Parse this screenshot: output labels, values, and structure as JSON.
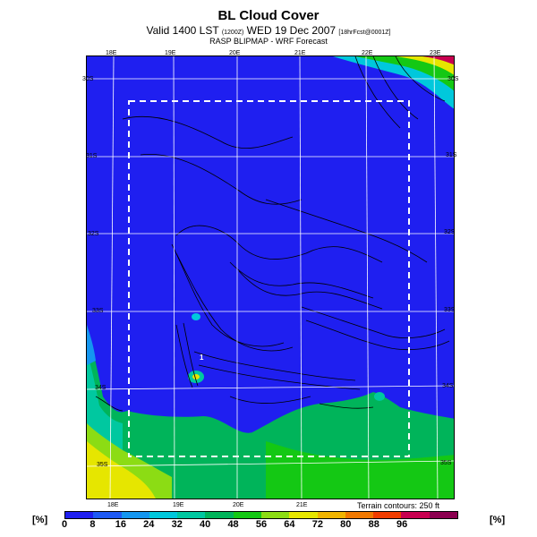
{
  "header": {
    "title": "BL Cloud Cover",
    "subtitle_main": "Valid 1400 LST",
    "subtitle_small": "(1200Z)",
    "subtitle_date": "WED 19 Dec 2007",
    "subtitle_fcst": "[18hrFcst@0001Z]",
    "source": "RASP BLIPMAP - WRF Forecast"
  },
  "map": {
    "top_lon_labels": [
      "18E",
      "19E",
      "20E",
      "21E",
      "22E",
      "23E"
    ],
    "bottom_lon_labels": [
      "18E",
      "19E",
      "20E",
      "21E"
    ],
    "right_lat_labels": [
      "30S",
      "31S",
      "32S",
      "33S",
      "34S",
      "35S"
    ],
    "left_lat_labels": [
      "30S",
      "31S",
      "32S",
      "33S",
      "34S",
      "35S"
    ],
    "site_marker": "1",
    "terrain_note": "Terrain contours: 250 ft"
  },
  "legend": {
    "unit_left": "[%]",
    "unit_right": "[%]",
    "values": [
      "0",
      "8",
      "16",
      "24",
      "32",
      "40",
      "48",
      "56",
      "64",
      "72",
      "80",
      "88",
      "96"
    ],
    "colors": [
      "#1f1ff0",
      "#1e5af5",
      "#1496f0",
      "#00c8dc",
      "#00c8a0",
      "#00b45a",
      "#14c814",
      "#8cdc14",
      "#e6e600",
      "#f0b400",
      "#f07800",
      "#f03c00",
      "#c80050",
      "#8c0050"
    ]
  }
}
